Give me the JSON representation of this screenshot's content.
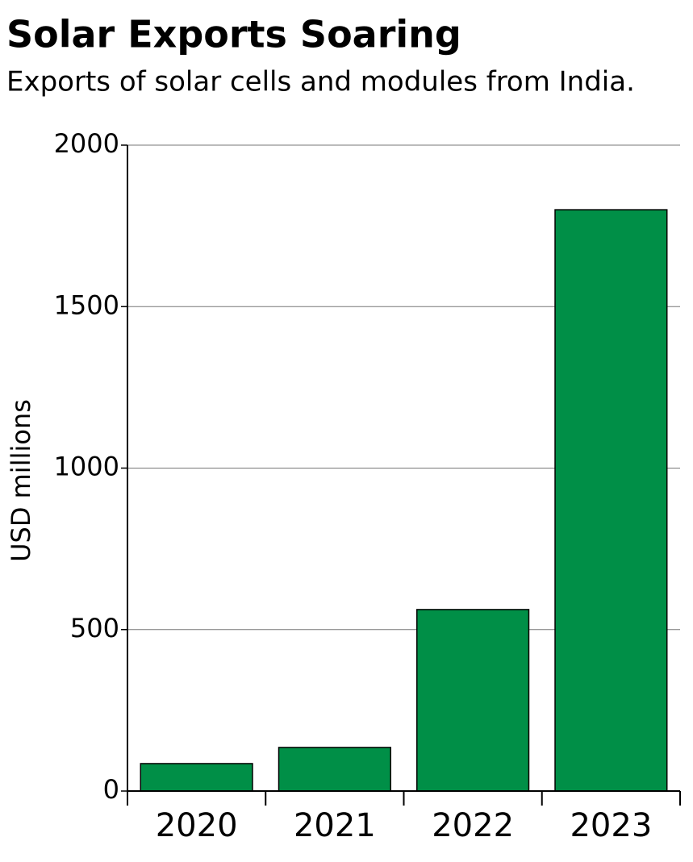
{
  "chart_data": {
    "type": "bar",
    "title": "Solar Exports Soaring",
    "subtitle": "Exports of solar cells and modules from India.",
    "y_label": "USD millions",
    "categories": [
      "2020",
      "2021",
      "2022",
      "2023"
    ],
    "values": [
      85,
      135,
      562,
      1800
    ],
    "color": "#008f47",
    "ylim": [
      0,
      2000
    ],
    "yticks": [
      0,
      500,
      1000,
      1500,
      2000
    ],
    "grid": true
  }
}
